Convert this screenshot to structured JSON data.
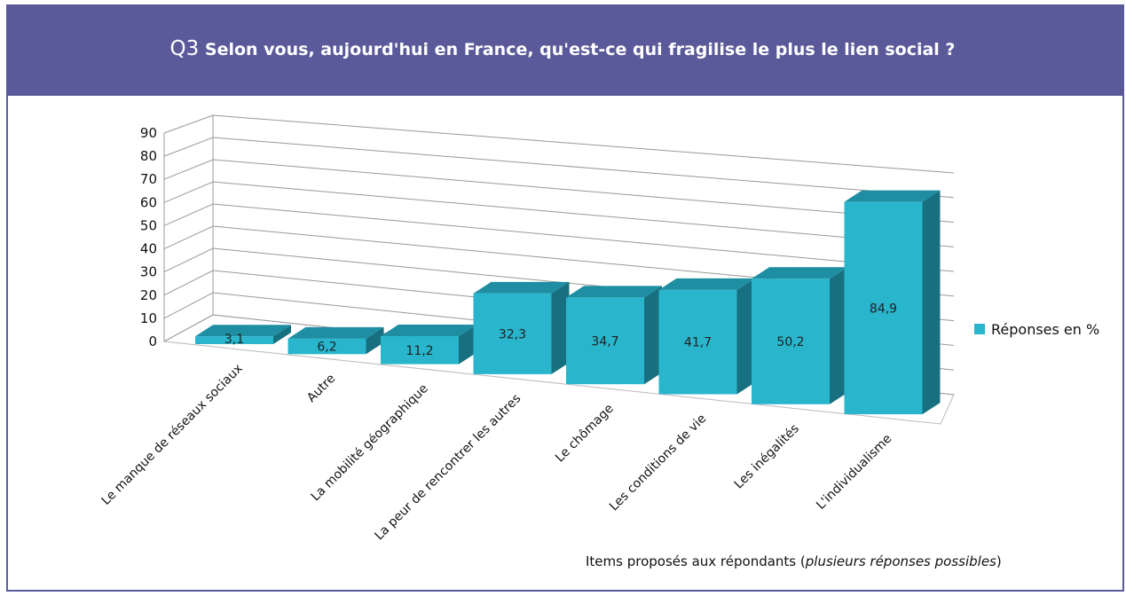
{
  "chart_data": {
    "type": "bar3d",
    "question": "Q3",
    "title": "Selon vous, aujourd'hui en France, qu'est-ce qui fragilise le plus le lien social ?",
    "categories": [
      "Le manque de réseaux sociaux",
      "Autre",
      "La mobilité géographique",
      "La peur de rencontrer les autres",
      "Le chômage",
      "Les conditions de vie",
      "Les inégalités",
      "L'individualisme"
    ],
    "series": [
      {
        "name": "Réponses en %",
        "color": "#29b5cc",
        "values": [
          3.1,
          6.2,
          11.2,
          32.3,
          34.7,
          41.7,
          50.2,
          84.9
        ],
        "value_labels": [
          "3,1",
          "6,2",
          "11,2",
          "32,3",
          "34,7",
          "41,7",
          "50,2",
          "84,9"
        ]
      }
    ],
    "ylim": [
      0,
      90
    ],
    "yticks": [
      0,
      10,
      20,
      30,
      40,
      50,
      60,
      70,
      80,
      90
    ],
    "grid": true,
    "legend": "right",
    "xlabel": [
      "Items proposés aux répondants (",
      "plusieurs réponses possibles",
      ")"
    ]
  }
}
